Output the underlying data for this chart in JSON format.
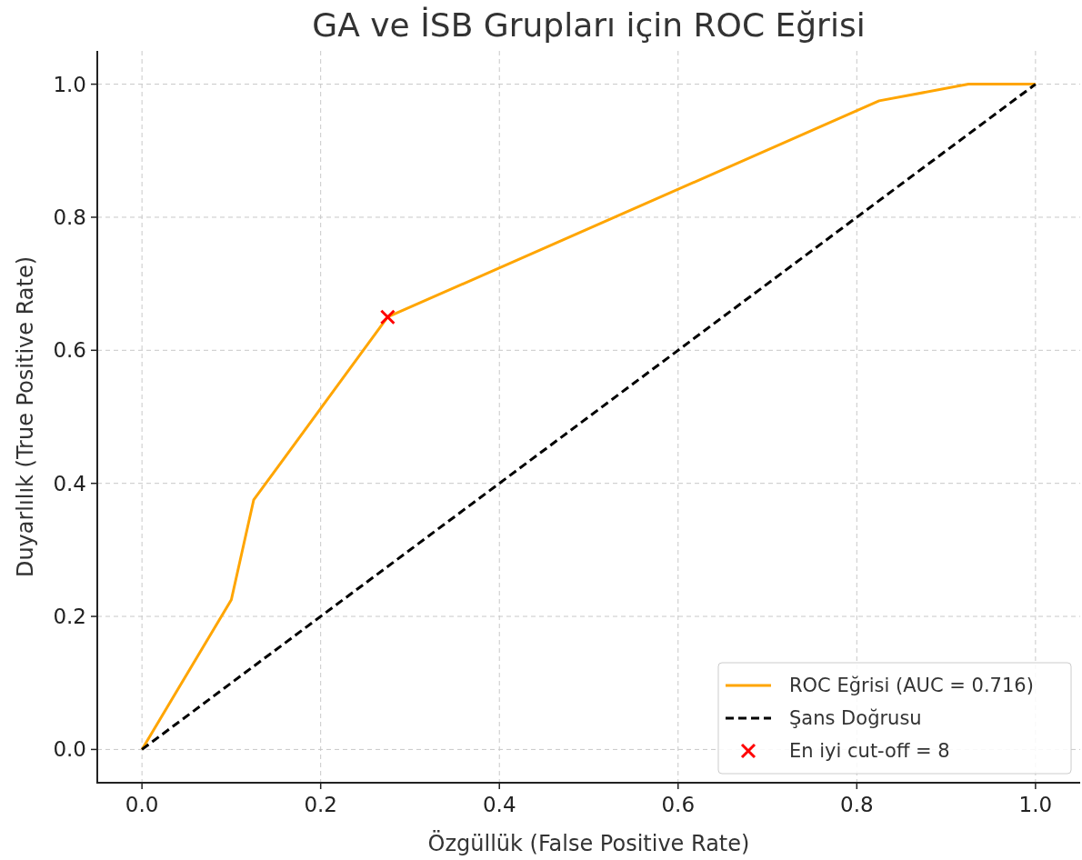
{
  "chart_data": {
    "type": "line",
    "title": "GA ve İSB Grupları için ROC Eğrisi",
    "xlabel": "Özgüllük (False Positive Rate)",
    "ylabel": "Duyarlılık (True Positive Rate)",
    "xlim": [
      -0.05,
      1.05
    ],
    "ylim": [
      -0.05,
      1.05
    ],
    "xticks": [
      {
        "value": 0,
        "label": "0.0"
      },
      {
        "value": 0.2,
        "label": "0.2"
      },
      {
        "value": 0.4,
        "label": "0.4"
      },
      {
        "value": 0.6,
        "label": "0.6"
      },
      {
        "value": 0.8,
        "label": "0.8"
      },
      {
        "value": 1,
        "label": "1.0"
      }
    ],
    "yticks": [
      {
        "value": 0,
        "label": "0.0"
      },
      {
        "value": 0.2,
        "label": "0.2"
      },
      {
        "value": 0.4,
        "label": "0.4"
      },
      {
        "value": 0.6,
        "label": "0.6"
      },
      {
        "value": 0.8,
        "label": "0.8"
      },
      {
        "value": 1,
        "label": "1.0"
      }
    ],
    "grid": true,
    "legend": "bottom right",
    "series": [
      {
        "name": "ROC Eğrisi (AUC = 0.716)",
        "color": "#ffa500",
        "line_style": "solid",
        "x": [
          0,
          0.1,
          0.125,
          0.275,
          0.825,
          0.925,
          1
        ],
        "values": [
          0,
          0.225,
          0.375,
          0.65,
          0.975,
          1,
          1
        ]
      },
      {
        "name": "Şans Doğrusu",
        "color": "#000000",
        "line_style": "dashed",
        "x": [
          0,
          1
        ],
        "values": [
          0,
          1
        ]
      },
      {
        "name": "En iyi cut-off = 8",
        "color": "#ff0000",
        "type": "scatter",
        "marker": "cross",
        "x": [
          0.275
        ],
        "values": [
          0.65
        ]
      }
    ]
  }
}
